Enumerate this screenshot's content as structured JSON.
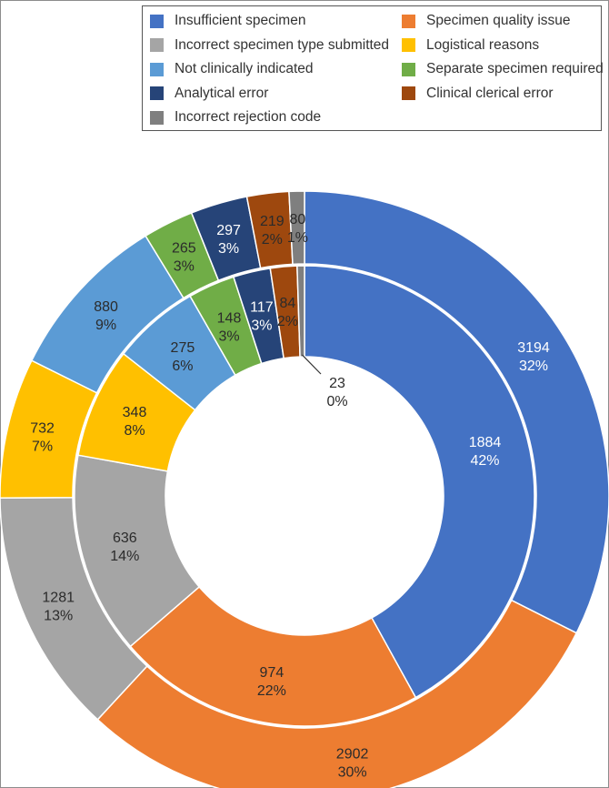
{
  "chart_data": {
    "type": "pie",
    "variant": "nested-donut",
    "title": "",
    "legend_position": "top-right",
    "categories": [
      "Insufficient specimen",
      "Specimen quality issue",
      "Incorrect specimen type submitted",
      "Logistical reasons",
      "Not clinically indicated",
      "Separate specimen required",
      "Analytical error",
      "Clinical clerical error",
      "Incorrect rejection code"
    ],
    "colors": [
      "#4472C4",
      "#ED7D31",
      "#A5A5A5",
      "#FFC000",
      "#5B9BD5",
      "#70AD47",
      "#264478",
      "#9E480E",
      "#7F7F7F"
    ],
    "series": [
      {
        "ring": "inner",
        "values": [
          1884,
          974,
          636,
          348,
          275,
          148,
          117,
          84,
          23
        ],
        "percent_labels": [
          "42%",
          "22%",
          "14%",
          "8%",
          "6%",
          "3%",
          "3%",
          "2%",
          "0%"
        ]
      },
      {
        "ring": "outer",
        "values": [
          3194,
          2902,
          1281,
          732,
          880,
          265,
          297,
          219,
          80
        ],
        "percent_labels": [
          "32%",
          "30%",
          "13%",
          "7%",
          "9%",
          "3%",
          "3%",
          "2%",
          "1%"
        ]
      }
    ]
  }
}
